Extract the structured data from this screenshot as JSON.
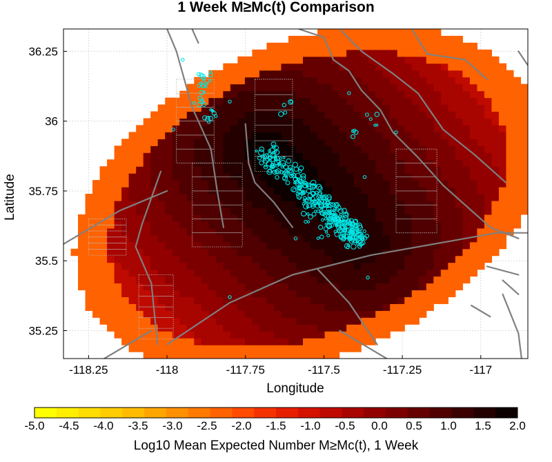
{
  "chart_data": {
    "type": "heatmap",
    "title": "1 Week M≥Mc(t) Comparison",
    "xlabel": "Longitude",
    "ylabel": "Latitude",
    "xlim": [
      -118.33,
      -116.85
    ],
    "ylim": [
      35.15,
      36.33
    ],
    "x_ticks": [
      -118.25,
      -118,
      -117.75,
      -117.5,
      -117.25,
      -117
    ],
    "x_tick_labels": [
      "-118.25",
      "-118",
      "-117.75",
      "-117.5",
      "-117.25",
      "-117"
    ],
    "y_ticks": [
      35.25,
      35.5,
      35.75,
      36,
      36.25
    ],
    "y_tick_labels": [
      "35.25",
      "35.5",
      "35.75",
      "36",
      "36.25"
    ],
    "grid": true,
    "heatmap": {
      "value_range": [
        -5.0,
        2.0
      ],
      "observed_range_approx": [
        -2.5,
        2.0
      ],
      "max_location": {
        "lon": -117.62,
        "lat": 35.83
      },
      "region": {
        "center": {
          "lon": -117.55,
          "lat": 35.72
        },
        "semi_axis_lon": 0.8,
        "semi_axis_lat": 0.55,
        "tilt_deg": 30
      }
    },
    "colorbar": {
      "label": "Log10 Mean Expected Number M≥Mc(t), 1 Week",
      "min": -5.0,
      "max": 2.0,
      "tick_labels": [
        "-5.0",
        "-4.5",
        "-4.0",
        "-3.5",
        "-3.0",
        "-2.5",
        "-2.0",
        "-1.5",
        "-1.0",
        "-0.5",
        "0.0",
        "0.5",
        "1.0",
        "1.5",
        "2.0"
      ],
      "colors": [
        "#ffff00",
        "#ffee00",
        "#ffdd00",
        "#ffcc00",
        "#ffbb00",
        "#ffa500",
        "#ff9000",
        "#ff7a00",
        "#ff6200",
        "#ff4a00",
        "#f53200",
        "#e81e00",
        "#d41200",
        "#bf0a00",
        "#a80400",
        "#920000",
        "#7c0000",
        "#660000",
        "#500000",
        "#3a0000",
        "#240000",
        "#0d0000"
      ]
    },
    "earthquakes": {
      "marker_color": "#00e5e5",
      "trend_start": {
        "lon": -117.69,
        "lat": 35.9
      },
      "trend_end": {
        "lon": -117.38,
        "lat": 35.56
      },
      "clusters": [
        {
          "lon": -117.88,
          "lat": 36.15,
          "count": 14
        },
        {
          "lon": -117.86,
          "lat": 36.02,
          "count": 10
        },
        {
          "lon": -117.9,
          "lat": 36.08,
          "count": 8
        },
        {
          "lon": -117.62,
          "lat": 36.05,
          "count": 5
        },
        {
          "lon": -117.35,
          "lat": 36.0,
          "count": 5
        },
        {
          "lon": -117.39,
          "lat": 35.95,
          "count": 4
        },
        {
          "lon": -117.4,
          "lat": 35.62,
          "count": 12
        },
        {
          "lon": -117.5,
          "lat": 35.6,
          "count": 6
        },
        {
          "lon": -117.55,
          "lat": 35.65,
          "count": 6
        }
      ],
      "isolated": [
        {
          "lon": -117.95,
          "lat": 36.22
        },
        {
          "lon": -117.8,
          "lat": 36.07
        },
        {
          "lon": -117.98,
          "lat": 35.97
        },
        {
          "lon": -117.42,
          "lat": 36.1
        },
        {
          "lon": -117.27,
          "lat": 35.96
        },
        {
          "lon": -117.56,
          "lat": 35.78
        },
        {
          "lon": -117.37,
          "lat": 35.8
        },
        {
          "lon": -117.36,
          "lat": 35.44
        },
        {
          "lon": -117.59,
          "lat": 35.58
        },
        {
          "lon": -117.8,
          "lat": 35.37
        }
      ]
    },
    "faults": {
      "color": "#808080",
      "lines": [
        [
          [
            -118.0,
            36.33
          ],
          [
            -117.97,
            36.25
          ],
          [
            -117.92,
            36.05
          ],
          [
            -117.86,
            35.9
          ],
          [
            -117.84,
            35.75
          ],
          [
            -117.82,
            35.62
          ]
        ],
        [
          [
            -117.92,
            36.33
          ],
          [
            -117.9,
            36.28
          ]
        ],
        [
          [
            -117.58,
            36.33
          ],
          [
            -117.5,
            36.3
          ],
          [
            -117.47,
            36.22
          ],
          [
            -117.42,
            36.18
          ],
          [
            -117.38,
            36.11
          ],
          [
            -117.32,
            36.04
          ],
          [
            -117.28,
            35.96
          ],
          [
            -117.2,
            35.87
          ],
          [
            -117.12,
            35.77
          ],
          [
            -116.97,
            35.62
          ],
          [
            -116.88,
            35.58
          ]
        ],
        [
          [
            -117.45,
            36.33
          ],
          [
            -117.38,
            36.25
          ],
          [
            -117.28,
            36.17
          ],
          [
            -117.2,
            36.1
          ],
          [
            -117.12,
            35.97
          ],
          [
            -117.02,
            35.88
          ],
          [
            -116.92,
            35.78
          ]
        ],
        [
          [
            -117.75,
            35.99
          ],
          [
            -117.74,
            35.85
          ],
          [
            -117.72,
            35.78
          ],
          [
            -117.66,
            35.71
          ],
          [
            -117.6,
            35.62
          ]
        ],
        [
          [
            -118.02,
            35.82
          ],
          [
            -118.08,
            35.63
          ],
          [
            -118.1,
            35.55
          ],
          [
            -118.05,
            35.42
          ],
          [
            -118.03,
            35.2
          ]
        ],
        [
          [
            -118.33,
            35.56
          ],
          [
            -118.15,
            35.68
          ],
          [
            -118.0,
            35.75
          ]
        ],
        [
          [
            -118.0,
            35.2
          ],
          [
            -117.8,
            35.35
          ],
          [
            -117.6,
            35.45
          ],
          [
            -117.35,
            35.52
          ],
          [
            -117.1,
            35.57
          ],
          [
            -116.95,
            35.6
          ],
          [
            -116.85,
            35.6
          ]
        ],
        [
          [
            -118.2,
            35.15
          ],
          [
            -118.05,
            35.25
          ]
        ],
        [
          [
            -117.52,
            35.47
          ],
          [
            -117.42,
            35.35
          ],
          [
            -117.33,
            35.2
          ]
        ],
        [
          [
            -117.45,
            35.25
          ],
          [
            -117.3,
            35.15
          ]
        ],
        [
          [
            -116.98,
            35.48
          ],
          [
            -116.88,
            35.45
          ]
        ],
        [
          [
            -116.93,
            35.43
          ],
          [
            -116.88,
            35.38
          ]
        ],
        [
          [
            -116.93,
            35.38
          ],
          [
            -116.88,
            35.24
          ],
          [
            -116.87,
            35.15
          ]
        ],
        [
          [
            -117.03,
            35.34
          ],
          [
            -116.97,
            35.3
          ]
        ],
        [
          [
            -117.22,
            36.33
          ],
          [
            -117.17,
            36.24
          ],
          [
            -117.05,
            36.22
          ],
          [
            -116.98,
            36.15
          ]
        ],
        [
          [
            -116.88,
            36.25
          ],
          [
            -116.85,
            36.2
          ]
        ]
      ]
    },
    "grid_boxes": {
      "color": "#bbbbbb",
      "boxes": [
        {
          "lon": [
            -117.97,
            -117.85
          ],
          "lat": [
            35.85,
            36.15
          ]
        },
        {
          "lon": [
            -117.92,
            -117.76
          ],
          "lat": [
            35.55,
            35.85
          ]
        },
        {
          "lon": [
            -117.72,
            -117.6
          ],
          "lat": [
            35.82,
            36.15
          ]
        },
        {
          "lon": [
            -117.27,
            -117.14
          ],
          "lat": [
            35.6,
            35.9
          ]
        },
        {
          "lon": [
            -118.09,
            -117.98
          ],
          "lat": [
            35.22,
            35.45
          ]
        },
        {
          "lon": [
            -118.25,
            -118.13
          ],
          "lat": [
            35.52,
            35.65
          ]
        }
      ]
    }
  }
}
